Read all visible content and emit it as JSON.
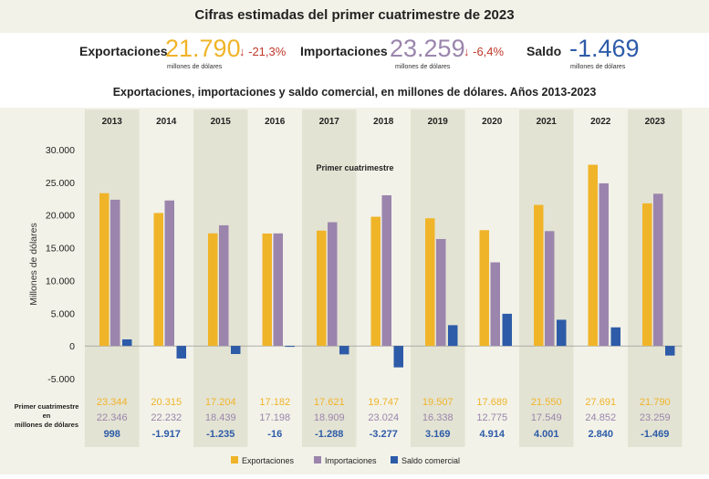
{
  "title": "Cifras estimadas del primer cuatrimestre de 2023",
  "kpis": {
    "exports": {
      "label": "Exportaciones",
      "value": "21.790",
      "unit": "millones de dólares",
      "change": "↓ -21,3%"
    },
    "imports": {
      "label": "Importaciones",
      "value": "23.259",
      "unit": "millones de dólares",
      "change": "↓ -6,4%"
    },
    "balance": {
      "label": "Saldo",
      "value": "-1.469",
      "unit": "millones de dólares"
    }
  },
  "colors": {
    "exports": "#f0b429",
    "imports": "#9b85ad",
    "balance": "#2d5ba8",
    "band": "#e3e3d3"
  },
  "chart_data": {
    "type": "bar",
    "title": "Exportaciones, importaciones y saldo comercial, en millones de dólares. Años 2013-2023",
    "annotation": "Primer cuatrimestre",
    "ylabel": "Millones de dólares",
    "ylim": [
      -5000,
      30000
    ],
    "yticks": [
      "30.000",
      "25.000",
      "20.000",
      "15.000",
      "10.000",
      "5.000",
      "0",
      "-5.000"
    ],
    "ytick_values": [
      30000,
      25000,
      20000,
      15000,
      10000,
      5000,
      0,
      -5000
    ],
    "categories": [
      "2013",
      "2014",
      "2015",
      "2016",
      "2017",
      "2018",
      "2019",
      "2020",
      "2021",
      "2022",
      "2023"
    ],
    "series": [
      {
        "name": "Exportaciones",
        "values": [
          23344,
          20315,
          17204,
          17182,
          17621,
          19747,
          19507,
          17689,
          21550,
          27691,
          21790
        ],
        "labels": [
          "23.344",
          "20.315",
          "17.204",
          "17.182",
          "17.621",
          "19.747",
          "19.507",
          "17.689",
          "21.550",
          "27.691",
          "21.790"
        ]
      },
      {
        "name": "Importaciones",
        "values": [
          22346,
          22232,
          18439,
          17198,
          18909,
          23024,
          16338,
          12775,
          17549,
          24852,
          23259
        ],
        "labels": [
          "22.346",
          "22.232",
          "18.439",
          "17.198",
          "18.909",
          "23.024",
          "16.338",
          "12.775",
          "17.549",
          "24.852",
          "23.259"
        ]
      },
      {
        "name": "Saldo comercial",
        "values": [
          998,
          -1917,
          -1235,
          -16,
          -1288,
          -3277,
          3169,
          4914,
          4001,
          2840,
          -1469
        ],
        "labels": [
          "998",
          "-1.917",
          "-1.235",
          "-16",
          "-1.288",
          "-3.277",
          "3.169",
          "4.914",
          "4.001",
          "2.840",
          "-1.469"
        ]
      }
    ],
    "table_label": "Primer cuatrimestre en millones de dólares"
  }
}
